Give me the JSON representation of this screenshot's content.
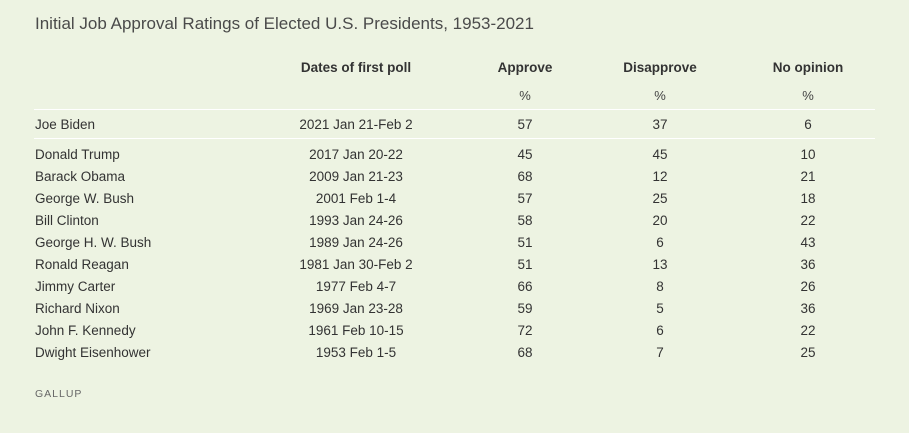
{
  "chart_data": {
    "type": "table",
    "title": "Initial Job Approval Ratings of Elected U.S. Presidents, 1953-2021",
    "columns": [
      "",
      "Dates of first poll",
      "Approve",
      "Disapprove",
      "No opinion"
    ],
    "units": [
      "",
      "",
      "%",
      "%",
      "%"
    ],
    "rows": [
      {
        "president": "Joe Biden",
        "dates": "2021 Jan 21-Feb 2",
        "approve": 57,
        "disapprove": 37,
        "no_opinion": 6
      },
      {
        "president": "Donald Trump",
        "dates": "2017 Jan 20-22",
        "approve": 45,
        "disapprove": 45,
        "no_opinion": 10
      },
      {
        "president": "Barack Obama",
        "dates": "2009 Jan 21-23",
        "approve": 68,
        "disapprove": 12,
        "no_opinion": 21
      },
      {
        "president": "George W. Bush",
        "dates": "2001 Feb 1-4",
        "approve": 57,
        "disapprove": 25,
        "no_opinion": 18
      },
      {
        "president": "Bill Clinton",
        "dates": "1993 Jan 24-26",
        "approve": 58,
        "disapprove": 20,
        "no_opinion": 22
      },
      {
        "president": "George H. W. Bush",
        "dates": "1989 Jan 24-26",
        "approve": 51,
        "disapprove": 6,
        "no_opinion": 43
      },
      {
        "president": "Ronald Reagan",
        "dates": "1981 Jan 30-Feb 2",
        "approve": 51,
        "disapprove": 13,
        "no_opinion": 36
      },
      {
        "president": "Jimmy Carter",
        "dates": "1977 Feb 4-7",
        "approve": 66,
        "disapprove": 8,
        "no_opinion": 26
      },
      {
        "president": "Richard Nixon",
        "dates": "1969 Jan 23-28",
        "approve": 59,
        "disapprove": 5,
        "no_opinion": 36
      },
      {
        "president": "John F. Kennedy",
        "dates": "1961 Feb 10-15",
        "approve": 72,
        "disapprove": 6,
        "no_opinion": 22
      },
      {
        "president": "Dwight Eisenhower",
        "dates": "1953 Feb 1-5",
        "approve": 68,
        "disapprove": 7,
        "no_opinion": 25
      }
    ]
  },
  "source": "GALLUP",
  "colors": {
    "background": "#edf3e2",
    "rule": "#ffffff",
    "text": "#333333"
  }
}
